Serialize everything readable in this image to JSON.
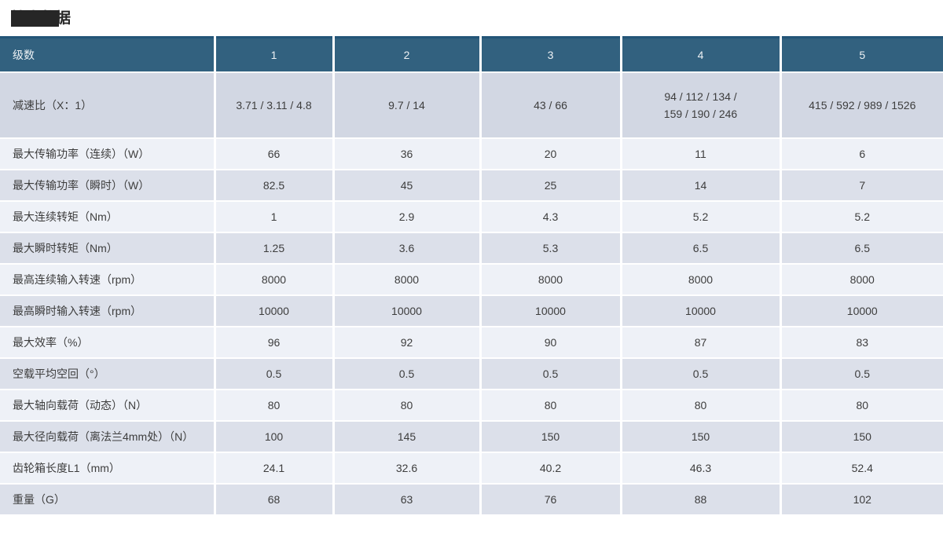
{
  "title": {
    "text": "技术数据"
  },
  "table": {
    "header": [
      "级数",
      "1",
      "2",
      "3",
      "4",
      "5"
    ],
    "rows": [
      {
        "label": "减速比（X：1）",
        "values": [
          "3.71 / 3.11 / 4.8",
          "9.7 / 14",
          "43 / 66",
          "94 / 112 / 134 /\n159 / 190 / 246",
          "415 / 592 / 989 / 1526"
        ]
      },
      {
        "label": "最大传输功率（连续）（W）",
        "values": [
          "66",
          "36",
          "20",
          "11",
          "6"
        ]
      },
      {
        "label": "最大传输功率（瞬时）（W）",
        "values": [
          "82.5",
          "45",
          "25",
          "14",
          "7"
        ]
      },
      {
        "label": "最大连续转矩（Nm）",
        "values": [
          "1",
          "2.9",
          "4.3",
          "5.2",
          "5.2"
        ]
      },
      {
        "label": "最大瞬时转矩（Nm）",
        "values": [
          "1.25",
          "3.6",
          "5.3",
          "6.5",
          "6.5"
        ]
      },
      {
        "label": "最高连续输入转速（rpm）",
        "values": [
          "8000",
          "8000",
          "8000",
          "8000",
          "8000"
        ]
      },
      {
        "label": "最高瞬时输入转速（rpm）",
        "values": [
          "10000",
          "10000",
          "10000",
          "10000",
          "10000"
        ]
      },
      {
        "label": "最大效率（%）",
        "values": [
          "96",
          "92",
          "90",
          "87",
          "83"
        ]
      },
      {
        "label": "空载平均空回（°）",
        "values": [
          "0.5",
          "0.5",
          "0.5",
          "0.5",
          "0.5"
        ]
      },
      {
        "label": "最大轴向载荷（动态）（N）",
        "values": [
          "80",
          "80",
          "80",
          "80",
          "80"
        ]
      },
      {
        "label": "最大径向载荷（离法兰4mm处）（N）",
        "values": [
          "100",
          "145",
          "150",
          "150",
          "150"
        ]
      },
      {
        "label": "齿轮箱长度L1（mm）",
        "values": [
          "24.1",
          "32.6",
          "40.2",
          "46.3",
          "52.4"
        ]
      },
      {
        "label": "重量（G）",
        "values": [
          "68",
          "63",
          "76",
          "88",
          "102"
        ]
      }
    ]
  },
  "colors": {
    "header_bg": "#32617f",
    "header_text": "#edf1f4",
    "row_dark_bg": "#d2d7e3",
    "row_light_bg": "#eef1f7",
    "row_medium_bg": "#dce0ea",
    "cell_text": "#3d3d3d",
    "table_top_border": "#235578",
    "redaction": "#262626"
  }
}
